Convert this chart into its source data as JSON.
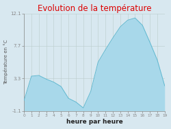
{
  "title": "Evolution de la température",
  "xlabel": "heure par heure",
  "ylabel": "Température en °C",
  "background_color": "#d8e8f0",
  "plot_bg_color": "#d8e8f0",
  "fill_color": "#a8d8ea",
  "line_color": "#60b8d0",
  "title_color": "#dd0000",
  "ylim": [
    -1.1,
    12.1
  ],
  "yticks": [
    -1.1,
    3.3,
    7.7,
    12.1
  ],
  "ytick_labels": [
    "-1.1",
    "3.3",
    "7.7",
    "12.1"
  ],
  "xticks": [
    0,
    1,
    2,
    3,
    4,
    5,
    6,
    7,
    8,
    9,
    10,
    11,
    12,
    13,
    14,
    15,
    16,
    17,
    18,
    19
  ],
  "xlim": [
    0,
    19
  ],
  "hours": [
    0,
    1,
    2,
    3,
    4,
    5,
    6,
    7,
    8,
    9,
    10,
    11,
    12,
    13,
    14,
    15,
    16,
    17,
    18,
    19
  ],
  "temps": [
    0.3,
    3.6,
    3.7,
    3.2,
    2.8,
    2.2,
    0.6,
    0.1,
    -0.7,
    1.5,
    5.5,
    7.2,
    8.8,
    10.3,
    11.2,
    11.5,
    10.5,
    8.2,
    5.8,
    2.3
  ],
  "fill_baseline": -1.1,
  "grid_color": "#bbcccc",
  "tick_color": "#888888",
  "label_color": "#555555"
}
